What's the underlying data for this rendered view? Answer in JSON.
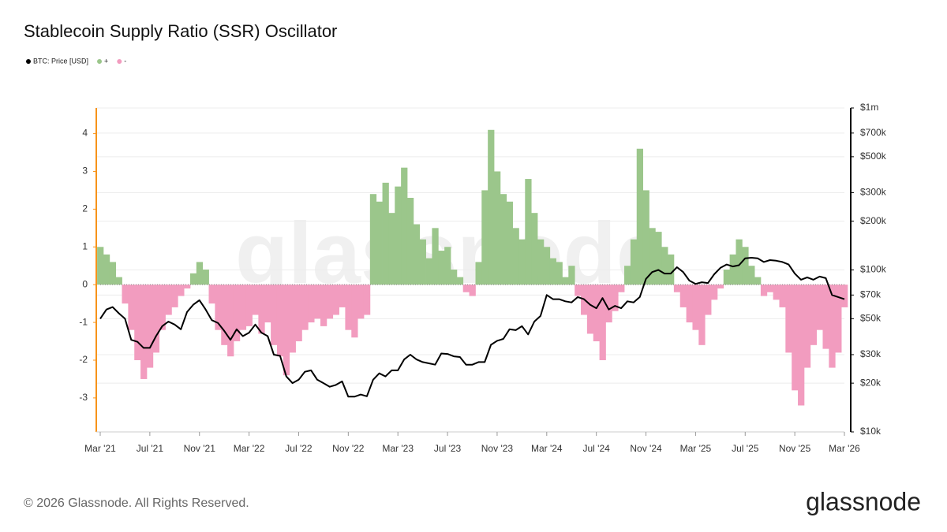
{
  "chart_data": {
    "type": "bar_line",
    "title": "Stablecoin Supply Ratio (SSR) Oscillator",
    "categories": [
      "Mar '21",
      null,
      null,
      null,
      null,
      null,
      null,
      null,
      "Jul '21",
      null,
      null,
      null,
      null,
      null,
      null,
      null,
      "Nov '21",
      null,
      null,
      null,
      null,
      null,
      null,
      null,
      "Mar '22",
      null,
      null,
      null,
      null,
      null,
      null,
      null,
      "Jul '22",
      null,
      null,
      null,
      null,
      null,
      null,
      null,
      "Nov '22",
      null,
      null,
      null,
      null,
      null,
      null,
      null,
      "Mar '23",
      null,
      null,
      null,
      null,
      null,
      null,
      null,
      "Jul '23",
      null,
      null,
      null,
      null,
      null,
      null,
      null,
      "Nov '23",
      null,
      null,
      null,
      null,
      null,
      null,
      null,
      "Mar '24",
      null,
      null,
      null,
      null,
      null,
      null,
      null,
      "Jul '24",
      null,
      null,
      null,
      null,
      null,
      null,
      null,
      "Nov '24",
      null,
      null,
      null,
      null,
      null,
      null,
      null,
      "Mar '25",
      null,
      null,
      null,
      null,
      null,
      null,
      null,
      "Jul '25",
      null,
      null,
      null,
      null,
      null,
      null,
      null,
      "Nov '25",
      null,
      null,
      null,
      null,
      null,
      null,
      null,
      "Mar '26"
    ],
    "series": [
      {
        "name": "BTC: Price [USD]",
        "color": "#000000",
        "type": "line",
        "axis": "y2",
        "values": [
          50000,
          57000,
          59000,
          54000,
          50000,
          37000,
          36000,
          33000,
          33000,
          39000,
          45000,
          48000,
          46000,
          43000,
          55000,
          61000,
          65000,
          57000,
          49000,
          47000,
          42000,
          37000,
          43000,
          39000,
          41000,
          46000,
          41000,
          39000,
          30000,
          29500,
          22000,
          20000,
          21000,
          23500,
          24000,
          21000,
          20000,
          19000,
          19500,
          20500,
          16500,
          16500,
          17000,
          16600,
          21000,
          23000,
          22000,
          24000,
          24000,
          28000,
          30000,
          28000,
          27000,
          26500,
          26000,
          30500,
          30300,
          29300,
          29000,
          26000,
          26000,
          27000,
          27000,
          34500,
          36500,
          37500,
          43000,
          42500,
          45000,
          40000,
          48000,
          52000,
          70000,
          66000,
          66000,
          64000,
          63000,
          68000,
          66000,
          61000,
          58000,
          67000,
          57000,
          60000,
          58000,
          64000,
          63000,
          68000,
          88000,
          97000,
          100000,
          95000,
          95000,
          104000,
          97000,
          86000,
          82000,
          84000,
          83000,
          94000,
          103000,
          108000,
          105000,
          107000,
          118000,
          119000,
          118000,
          112000,
          115000,
          114000,
          112000,
          108000,
          95000,
          87000,
          90000,
          87000,
          91000,
          89000,
          70000,
          68000,
          66000
        ]
      },
      {
        "name": "+",
        "color": "#9bc68b",
        "type": "bar",
        "values": [
          1.0,
          0.8,
          0.6,
          0.2,
          null,
          null,
          null,
          null,
          null,
          null,
          null,
          null,
          null,
          null,
          null,
          0.3,
          0.6,
          0.4,
          null,
          null,
          null,
          null,
          null,
          null,
          null,
          null,
          null,
          null,
          null,
          null,
          null,
          null,
          null,
          null,
          null,
          null,
          null,
          null,
          null,
          null,
          null,
          null,
          null,
          null,
          2.4,
          2.2,
          2.7,
          1.9,
          2.6,
          3.1,
          2.3,
          1.6,
          1.2,
          0.7,
          1.5,
          0.9,
          1.0,
          0.4,
          0.2,
          null,
          null,
          0.6,
          2.5,
          4.1,
          3.0,
          2.4,
          2.2,
          1.5,
          1.2,
          2.8,
          1.9,
          1.2,
          1.0,
          0.7,
          0.6,
          0.2,
          0.5,
          null,
          null,
          null,
          null,
          null,
          null,
          null,
          null,
          0.5,
          1.2,
          3.6,
          2.5,
          1.5,
          1.4,
          1.0,
          0.8,
          null,
          null,
          null,
          null,
          null,
          null,
          null,
          null,
          0.4,
          0.8,
          1.2,
          1.0,
          0.5,
          0.2,
          null,
          null,
          null,
          null,
          null,
          null,
          null,
          null,
          null,
          null,
          null,
          null,
          null,
          null
        ]
      },
      {
        "name": "-",
        "color": "#f29cbf",
        "type": "bar",
        "values": [
          null,
          null,
          null,
          null,
          -0.5,
          -1.2,
          -2.0,
          -2.5,
          -2.2,
          -1.8,
          -1.2,
          -0.8,
          -0.6,
          -0.3,
          -0.1,
          null,
          null,
          null,
          -0.5,
          -1.2,
          -1.6,
          -1.9,
          -1.5,
          -1.2,
          -1.1,
          -0.8,
          -1.3,
          -1.0,
          -1.6,
          -1.9,
          -2.4,
          -1.8,
          -1.5,
          -1.2,
          -1.0,
          -0.9,
          -1.1,
          -0.9,
          -0.8,
          -0.6,
          -1.2,
          -1.4,
          -0.9,
          -0.8,
          null,
          null,
          null,
          null,
          null,
          null,
          null,
          null,
          null,
          null,
          null,
          null,
          null,
          null,
          null,
          -0.2,
          -0.3,
          null,
          null,
          null,
          null,
          null,
          null,
          null,
          null,
          null,
          null,
          null,
          null,
          null,
          null,
          null,
          null,
          -0.3,
          -0.8,
          -1.3,
          -1.5,
          -2.0,
          -1.0,
          -0.7,
          -0.2,
          null,
          null,
          null,
          null,
          null,
          null,
          null,
          null,
          -0.2,
          -0.6,
          -1.0,
          -1.2,
          -1.6,
          -0.8,
          -0.4,
          -0.1,
          null,
          null,
          null,
          null,
          null,
          null,
          -0.3,
          -0.2,
          -0.4,
          -0.6,
          -1.8,
          -2.8,
          -3.2,
          -2.2,
          -1.6,
          -1.2,
          -1.7,
          -2.2,
          -1.8,
          -0.6
        ]
      }
    ],
    "ylim": [
      -3.9,
      4.68
    ],
    "yticks": [
      -3,
      -2,
      -1,
      0,
      1,
      2,
      3,
      4
    ],
    "y2lim": [
      10000,
      1000000
    ],
    "y2scale": "log",
    "y2ticks": [
      {
        "value": 10000,
        "label": "$10k"
      },
      {
        "value": 20000,
        "label": "$20k"
      },
      {
        "value": 30000,
        "label": "$30k"
      },
      {
        "value": 50000,
        "label": "$50k"
      },
      {
        "value": 70000,
        "label": "$70k"
      },
      {
        "value": 100000,
        "label": "$100k"
      },
      {
        "value": 200000,
        "label": "$200k"
      },
      {
        "value": 300000,
        "label": "$300k"
      },
      {
        "value": 500000,
        "label": "$500k"
      },
      {
        "value": 700000,
        "label": "$700k"
      },
      {
        "value": 1000000,
        "label": "$1m"
      }
    ],
    "grid": true,
    "legend": "top-left"
  },
  "footer": "© 2026 Glassnode. All Rights Reserved.",
  "brand": "glassnode"
}
